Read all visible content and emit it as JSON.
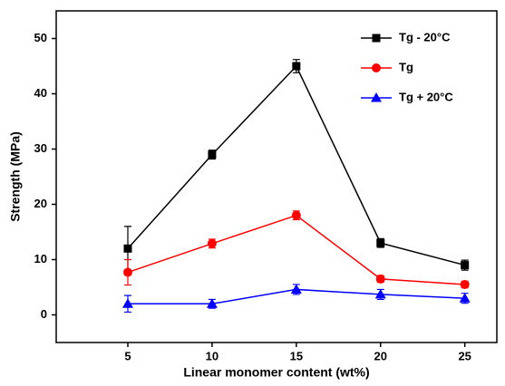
{
  "chart_data": {
    "type": "line",
    "xlabel": "Linear monomer content (wt%)",
    "ylabel": "Strength (MPa)",
    "x": [
      5,
      10,
      15,
      20,
      25
    ],
    "series": [
      {
        "name": "Tg - 20°C",
        "color": "#000000",
        "marker": "square",
        "values": [
          12,
          29,
          45,
          13,
          9
        ],
        "errors": [
          4,
          0.8,
          1.2,
          0.8,
          0.9
        ]
      },
      {
        "name": "Tg",
        "color": "#ff0000",
        "marker": "circle",
        "values": [
          7.7,
          12.9,
          18,
          6.5,
          5.5
        ],
        "errors": [
          2.3,
          0.8,
          0.8,
          0.6,
          0.6
        ]
      },
      {
        "name": "Tg + 20°C",
        "color": "#0000ff",
        "marker": "triangle",
        "values": [
          2,
          2,
          4.6,
          3.7,
          3
        ],
        "errors": [
          1.5,
          0.8,
          0.9,
          0.9,
          0.9
        ]
      }
    ],
    "xlim": [
      0.75,
      26.9
    ],
    "ylim": [
      -5,
      55
    ],
    "xticks": [
      5,
      10,
      15,
      20,
      25
    ],
    "yticks": [
      0,
      10,
      20,
      30,
      40,
      50
    ],
    "legend": "upper right"
  }
}
